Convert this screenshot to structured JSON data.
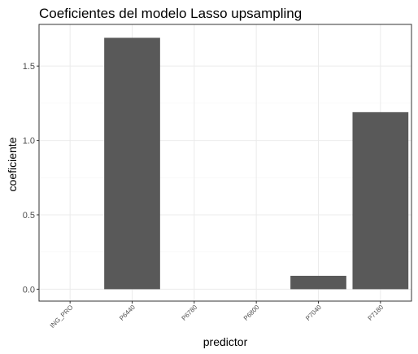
{
  "chart_data": {
    "type": "bar",
    "title": "Coeficientes del modelo Lasso upsampling",
    "xlabel": "predictor",
    "ylabel": "coeficiente",
    "categories": [
      "ING_PRO",
      "P6440",
      "P6780",
      "P6800",
      "P7040",
      "P7180"
    ],
    "values": [
      0.0,
      1.69,
      0.0,
      0.0,
      0.09,
      1.19
    ],
    "ylim": [
      -0.08,
      1.78
    ],
    "yticks": [
      0.0,
      0.5,
      1.0,
      1.5
    ],
    "yticklabels": [
      "0.0",
      "0.5",
      "1.0",
      "1.5"
    ],
    "grid": true,
    "legend": "none",
    "colors": {
      "bar": "#595959",
      "panel_border": "#333333",
      "grid_major": "#ebebeb",
      "grid_minor": "#f5f5f5",
      "tick_text": "#4d4d4d"
    }
  }
}
